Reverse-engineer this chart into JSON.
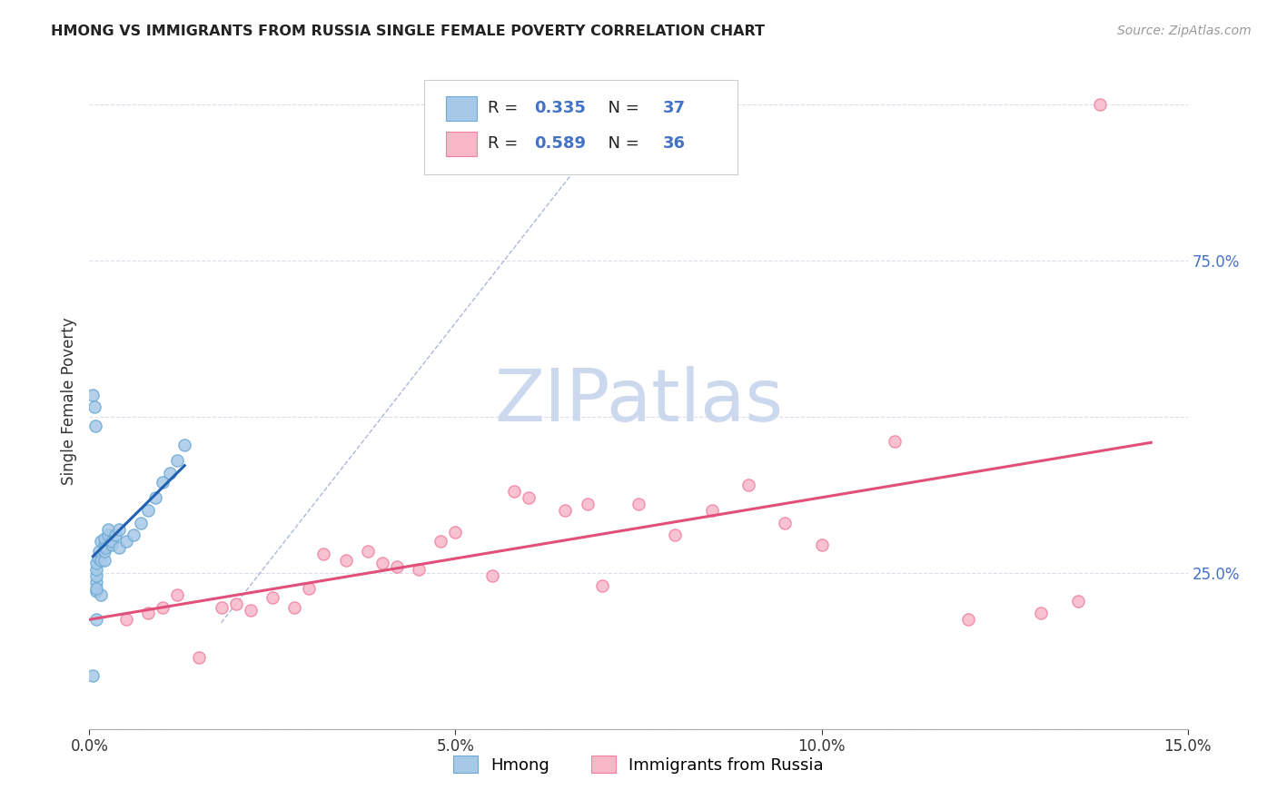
{
  "title": "HMONG VS IMMIGRANTS FROM RUSSIA SINGLE FEMALE POVERTY CORRELATION CHART",
  "source": "Source: ZipAtlas.com",
  "ylabel": "Single Female Poverty",
  "xlim": [
    0,
    0.15
  ],
  "ylim": [
    0,
    1.05
  ],
  "hmong_R": 0.335,
  "hmong_N": 37,
  "russia_R": 0.589,
  "russia_N": 36,
  "hmong_fill": "#a8c8e8",
  "hmong_edge": "#6aaad4",
  "russia_fill": "#f9b8c8",
  "russia_edge": "#f080a0",
  "hmong_line_color": "#2060b0",
  "russia_line_color": "#e0507a",
  "ref_line_color": "#8899cc",
  "background_color": "#ffffff",
  "grid_color": "#ddddee",
  "watermark_color": "#ccd8ee",
  "title_color": "#222222",
  "source_color": "#999999",
  "ytick_color": "#4472c4",
  "legend_text_color": "#222222",
  "legend_value_color": "#4472c4",
  "hmong_x": [
    0.0005,
    0.0007,
    0.0008,
    0.001,
    0.001,
    0.001,
    0.001,
    0.001,
    0.0012,
    0.0013,
    0.0015,
    0.0015,
    0.002,
    0.002,
    0.002,
    0.002,
    0.0022,
    0.0025,
    0.0025,
    0.003,
    0.003,
    0.0035,
    0.004,
    0.004,
    0.005,
    0.006,
    0.007,
    0.008,
    0.009,
    0.01,
    0.011,
    0.012,
    0.013,
    0.0005,
    0.001,
    0.0015,
    0.001
  ],
  "hmong_y": [
    0.535,
    0.515,
    0.485,
    0.22,
    0.235,
    0.245,
    0.255,
    0.265,
    0.275,
    0.285,
    0.27,
    0.3,
    0.27,
    0.285,
    0.295,
    0.305,
    0.29,
    0.31,
    0.32,
    0.295,
    0.3,
    0.31,
    0.32,
    0.29,
    0.3,
    0.31,
    0.33,
    0.35,
    0.37,
    0.395,
    0.41,
    0.43,
    0.455,
    0.085,
    0.175,
    0.215,
    0.225
  ],
  "russia_x": [
    0.005,
    0.008,
    0.01,
    0.012,
    0.015,
    0.018,
    0.02,
    0.022,
    0.025,
    0.028,
    0.03,
    0.032,
    0.035,
    0.038,
    0.04,
    0.042,
    0.045,
    0.048,
    0.05,
    0.055,
    0.058,
    0.06,
    0.065,
    0.068,
    0.07,
    0.075,
    0.08,
    0.085,
    0.09,
    0.095,
    0.1,
    0.11,
    0.12,
    0.13,
    0.135,
    0.138
  ],
  "russia_y": [
    0.175,
    0.185,
    0.195,
    0.215,
    0.115,
    0.195,
    0.2,
    0.19,
    0.21,
    0.195,
    0.225,
    0.28,
    0.27,
    0.285,
    0.265,
    0.26,
    0.255,
    0.3,
    0.315,
    0.245,
    0.38,
    0.37,
    0.35,
    0.36,
    0.23,
    0.36,
    0.31,
    0.35,
    0.39,
    0.33,
    0.295,
    0.46,
    0.175,
    0.185,
    0.205,
    1.0
  ],
  "ref_line_x": [
    0.018,
    0.068
  ],
  "ref_line_y": [
    0.17,
    0.92
  ],
  "hmong_line_x": [
    0.0005,
    0.013
  ],
  "russia_line_x": [
    0.0,
    0.145
  ]
}
